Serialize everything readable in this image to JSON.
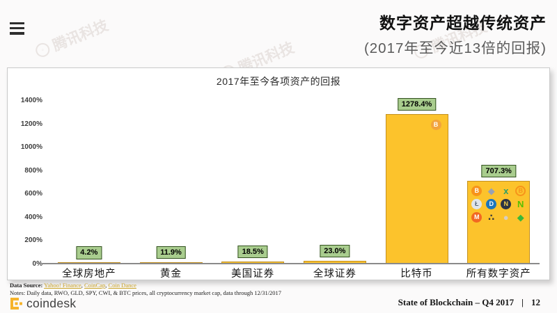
{
  "header": {
    "title": "数字资产超越传统资产",
    "subtitle": "(2017年至今近13倍的回报)"
  },
  "watermark": {
    "label": "腾讯科技"
  },
  "chart_data": {
    "type": "bar",
    "title": "2017年至今各项资产的回报",
    "categories": [
      "全球房地产",
      "黄金",
      "美国证券",
      "全球证券",
      "比特币",
      "所有数字资产"
    ],
    "values": [
      4.2,
      11.9,
      18.5,
      23.0,
      1278.4,
      707.3
    ],
    "value_labels": [
      "4.2%",
      "11.9%",
      "18.5%",
      "23.0%",
      "1278.4%",
      "707.3%"
    ],
    "yticks": [
      "1400%",
      "1200%",
      "1000%",
      "800%",
      "600%",
      "400%",
      "200%",
      "0%"
    ],
    "ylim": [
      0,
      1400
    ],
    "grid": false,
    "legend": false,
    "colors": {
      "bar_fill": "#fcc32c",
      "bar_border": "#c39020",
      "label_bg": "#a9cd8e",
      "label_border": "#32511f"
    }
  },
  "bitcoin_bar_icon": {
    "name": "bitcoin-icon",
    "glyph": "B",
    "bg": "#f2a43c",
    "fg": "#ffffff",
    "kind": "circle"
  },
  "digital_assets_icons": [
    {
      "name": "bitcoin-icon",
      "glyph": "B",
      "bg": "#f7931a",
      "fg": "#ffffff",
      "kind": "circle"
    },
    {
      "name": "ethereum-icon",
      "glyph": "◆",
      "fg": "#98a1b3",
      "kind": "glyph"
    },
    {
      "name": "ripple-icon",
      "glyph": "x",
      "fg": "#2e9e68",
      "kind": "glyph"
    },
    {
      "name": "bitcoin-cash-icon",
      "glyph": "B",
      "fg": "#f7931a",
      "bc": "#f7931a",
      "kind": "ring"
    },
    {
      "name": "litecoin-icon",
      "glyph": "Ł",
      "bg": "#dfe5ec",
      "fg": "#5a6b7e",
      "kind": "circle"
    },
    {
      "name": "dash-icon",
      "glyph": "D",
      "bg": "#1c75bc",
      "fg": "#ffffff",
      "kind": "circle"
    },
    {
      "name": "nem-icon",
      "glyph": "N",
      "bg": "#2d3445",
      "fg": "#f5d04a",
      "kind": "circle"
    },
    {
      "name": "neo-icon",
      "glyph": "N",
      "fg": "#58bf00",
      "kind": "glyph"
    },
    {
      "name": "monero-icon",
      "glyph": "M",
      "bg": "#f26822",
      "fg": "#ffffff",
      "kind": "circle"
    },
    {
      "name": "iota-icon",
      "glyph": "∴",
      "fg": "#3a3a3a",
      "kind": "glyph"
    },
    {
      "name": "faded-coin-icon",
      "glyph": "●",
      "fg": "#d8cfc2",
      "kind": "glyph"
    },
    {
      "name": "ethereum-classic-icon",
      "glyph": "◆",
      "fg": "#3ab83a",
      "kind": "glyph"
    }
  ],
  "footnote": {
    "source_label": "Data Source:",
    "sources": [
      "Yahoo! Finance",
      "CoinCap",
      "Coin Dance"
    ],
    "notes": "Notes: Daily data, RWO, GLD, SPY, CWI, & BTC prices, all cryptocurrency market cap, data through 12/31/2017"
  },
  "footer": {
    "brand": "coindesk",
    "brand_gold": "#f5b32b",
    "report": "State of Blockchain – Q4 2017",
    "divider": "|",
    "page": "12"
  }
}
